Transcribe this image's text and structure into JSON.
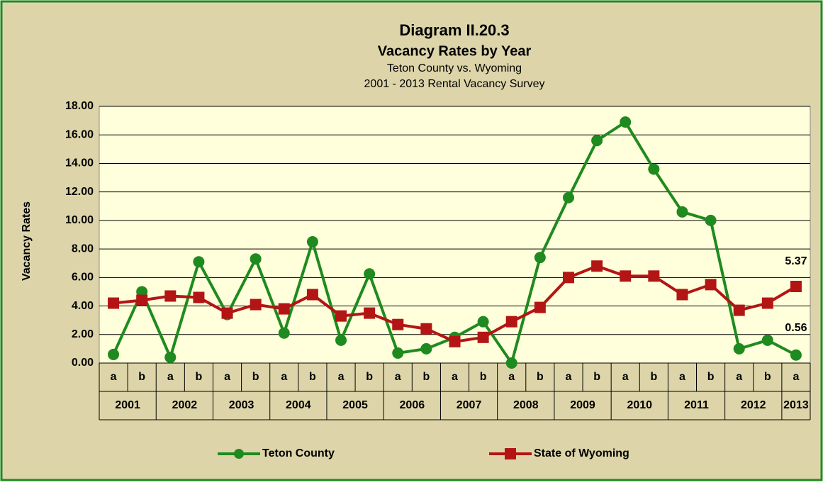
{
  "chart_data": {
    "type": "line",
    "title": "Diagram II.20.3",
    "subtitle": "Vacancy Rates by Year",
    "subtitle_lines": [
      "Teton County vs. Wyoming",
      "2001 - 2013 Rental Vacancy Survey"
    ],
    "ylabel": "Vacancy Rates",
    "groups": [
      {
        "label": "2001",
        "categories": [
          "a",
          "b"
        ]
      },
      {
        "label": "2002",
        "categories": [
          "a",
          "b"
        ]
      },
      {
        "label": "2003",
        "categories": [
          "a",
          "b"
        ]
      },
      {
        "label": "2004",
        "categories": [
          "a",
          "b"
        ]
      },
      {
        "label": "2005",
        "categories": [
          "a",
          "b"
        ]
      },
      {
        "label": "2006",
        "categories": [
          "a",
          "b"
        ]
      },
      {
        "label": "2007",
        "categories": [
          "a",
          "b"
        ]
      },
      {
        "label": "2008",
        "categories": [
          "a",
          "b"
        ]
      },
      {
        "label": "2009",
        "categories": [
          "a",
          "b"
        ]
      },
      {
        "label": "2010",
        "categories": [
          "a",
          "b"
        ]
      },
      {
        "label": "2011",
        "categories": [
          "a",
          "b"
        ]
      },
      {
        "label": "2012",
        "categories": [
          "a",
          "b"
        ]
      },
      {
        "label": "2013",
        "categories": [
          "a"
        ]
      }
    ],
    "series": [
      {
        "name": "Teton County",
        "color": "#1f8a1f",
        "marker": "circle",
        "values": [
          0.6,
          5.0,
          0.4,
          7.1,
          3.4,
          7.3,
          2.1,
          8.5,
          1.6,
          6.25,
          0.7,
          1.0,
          1.8,
          2.9,
          0.0,
          7.4,
          11.6,
          15.6,
          16.9,
          13.6,
          10.6,
          10.0,
          1.0,
          1.6,
          0.56
        ],
        "value_labels": [
          null,
          null,
          null,
          null,
          null,
          null,
          null,
          null,
          null,
          null,
          null,
          null,
          null,
          null,
          null,
          null,
          null,
          null,
          null,
          null,
          null,
          null,
          null,
          null,
          "0.56"
        ]
      },
      {
        "name": "State of Wyoming",
        "color": "#b31515",
        "marker": "square",
        "values": [
          4.2,
          4.4,
          4.7,
          4.6,
          3.5,
          4.1,
          3.8,
          4.8,
          3.3,
          3.5,
          2.7,
          2.4,
          1.5,
          1.8,
          2.9,
          3.9,
          6.0,
          6.8,
          6.1,
          6.1,
          4.8,
          5.5,
          3.7,
          4.2,
          5.37
        ],
        "value_labels": [
          null,
          null,
          null,
          null,
          null,
          null,
          null,
          null,
          null,
          null,
          null,
          null,
          null,
          null,
          null,
          null,
          null,
          null,
          null,
          null,
          null,
          null,
          null,
          null,
          "5.37"
        ]
      }
    ],
    "ylim": [
      0,
      18
    ],
    "yticks": [
      {
        "value": 0,
        "label": "0.00"
      },
      {
        "value": 2,
        "label": "2.00"
      },
      {
        "value": 4,
        "label": "4.00"
      },
      {
        "value": 6,
        "label": "6.00"
      },
      {
        "value": 8,
        "label": "8.00"
      },
      {
        "value": 10,
        "label": "10.00"
      },
      {
        "value": 12,
        "label": "12.00"
      },
      {
        "value": 14,
        "label": "14.00"
      },
      {
        "value": 16,
        "label": "16.00"
      },
      {
        "value": 18,
        "label": "18.00"
      }
    ],
    "grid": true,
    "legend": "bottom"
  }
}
